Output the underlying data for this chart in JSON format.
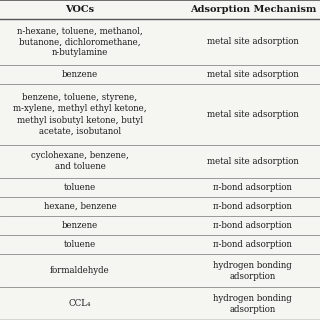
{
  "title_vocs": "VOCs",
  "title_mechanism": "Adsorption Mechanism",
  "rows": [
    {
      "voc": "n-hexane, toluene, methanol,\nbutanone, dichloromethane,\nn-butylamine",
      "mechanism": "metal site adsorption",
      "voc_lines": 3,
      "mech_lines": 1
    },
    {
      "voc": "benzene",
      "mechanism": "metal site adsorption",
      "voc_lines": 1,
      "mech_lines": 1
    },
    {
      "voc": "benzene, toluene, styrene,\nm-xylene, methyl ethyl ketone,\nmethyl isobutyl ketone, butyl\nacetate, isobutanol",
      "mechanism": "metal site adsorption",
      "voc_lines": 4,
      "mech_lines": 1
    },
    {
      "voc": "cyclohexane, benzene,\nand toluene",
      "mechanism": "metal site adsorption",
      "voc_lines": 2,
      "mech_lines": 1
    },
    {
      "voc": "toluene",
      "mechanism": "π-bond adsorption",
      "voc_lines": 1,
      "mech_lines": 1
    },
    {
      "voc": "hexane, benzene",
      "mechanism": "π-bond adsorption",
      "voc_lines": 1,
      "mech_lines": 1
    },
    {
      "voc": "benzene",
      "mechanism": "π-bond adsorption",
      "voc_lines": 1,
      "mech_lines": 1
    },
    {
      "voc": "toluene",
      "mechanism": "π-bond adsorption",
      "voc_lines": 1,
      "mech_lines": 1
    },
    {
      "voc": "formaldehyde",
      "mechanism": "hydrogen bonding\nadsorption",
      "voc_lines": 1,
      "mech_lines": 2
    },
    {
      "voc": "CCL₄",
      "mechanism": "hydrogen bonding\nadsorption",
      "voc_lines": 1,
      "mech_lines": 2
    }
  ],
  "col_split": 0.5,
  "bg_color": "#f5f5f2",
  "text_color": "#1a1a1a",
  "line_color": "#999999",
  "header_line_color": "#555555",
  "font_size": 6.2,
  "header_font_size": 7.0,
  "line_padding": 1.3
}
